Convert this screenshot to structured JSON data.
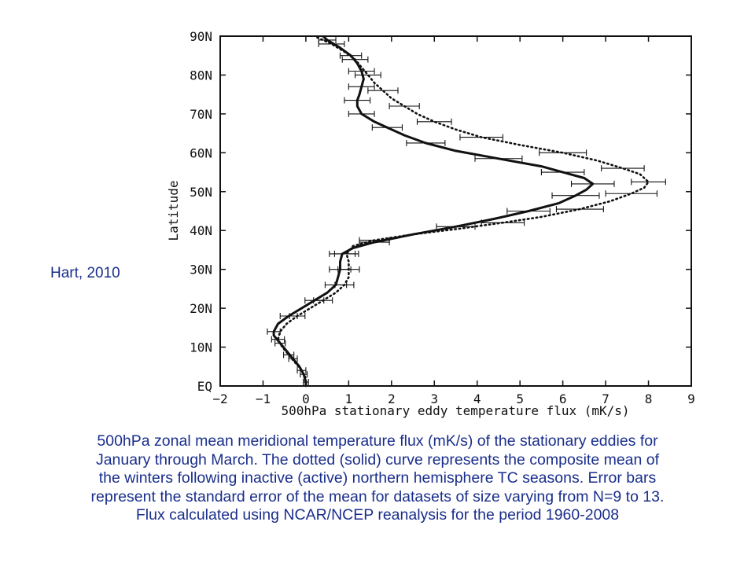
{
  "citation": "Hart, 2010",
  "caption": {
    "lines": [
      "500hPa zonal mean meridional temperature flux (mK/s) of the stationary eddies for",
      "January through March. The dotted (solid) curve represents the composite mean of",
      "the winters following inactive (active) northern hemisphere TC seasons. Error bars",
      "represent the standard error of the mean for datasets of size varying from N=9 to 13.",
      "Flux calculated using NCAR/NCEP reanalysis for the period 1960-2008"
    ]
  },
  "chart_data": {
    "type": "line",
    "title": "",
    "xlabel": "500hPa stationary eddy temperature flux (mK/s)",
    "ylabel": "Latitude",
    "xlim": [
      -2,
      9
    ],
    "ylim": [
      0,
      90
    ],
    "xticks": [
      -2,
      -1,
      0,
      1,
      2,
      3,
      4,
      5,
      6,
      7,
      8,
      9
    ],
    "xtick_labels": [
      "−2",
      "−1",
      "0",
      "1",
      "2",
      "3",
      "4",
      "5",
      "6",
      "7",
      "8",
      "9"
    ],
    "yticks": [
      0,
      10,
      20,
      30,
      40,
      50,
      60,
      70,
      80,
      90
    ],
    "ytick_labels": [
      "EQ",
      "10N",
      "20N",
      "30N",
      "40N",
      "50N",
      "60N",
      "70N",
      "80N",
      "90N"
    ],
    "grid": false,
    "series": [
      {
        "style": "solid",
        "color": "#111111",
        "points": [
          [
            0.0,
            0
          ],
          [
            0.0,
            1
          ],
          [
            -0.05,
            3
          ],
          [
            -0.15,
            5
          ],
          [
            -0.3,
            7
          ],
          [
            -0.45,
            9
          ],
          [
            -0.6,
            11
          ],
          [
            -0.75,
            13
          ],
          [
            -0.75,
            14
          ],
          [
            -0.65,
            16
          ],
          [
            -0.4,
            18
          ],
          [
            -0.1,
            20
          ],
          [
            0.2,
            22
          ],
          [
            0.5,
            24
          ],
          [
            0.7,
            26
          ],
          [
            0.75,
            28
          ],
          [
            0.8,
            30
          ],
          [
            0.8,
            32
          ],
          [
            0.85,
            34
          ],
          [
            1.1,
            35.5
          ],
          [
            1.6,
            37
          ],
          [
            2.5,
            39
          ],
          [
            3.5,
            41
          ],
          [
            4.4,
            43
          ],
          [
            5.2,
            45
          ],
          [
            5.9,
            47
          ],
          [
            6.3,
            49
          ],
          [
            6.55,
            50.5
          ],
          [
            6.7,
            52
          ],
          [
            6.5,
            53.5
          ],
          [
            6.0,
            55
          ],
          [
            5.5,
            56.5
          ],
          [
            4.5,
            58.5
          ],
          [
            3.5,
            60.5
          ],
          [
            2.8,
            62.5
          ],
          [
            2.3,
            64.5
          ],
          [
            1.9,
            66.5
          ],
          [
            1.6,
            68
          ],
          [
            1.3,
            70
          ],
          [
            1.2,
            72
          ],
          [
            1.2,
            73.5
          ],
          [
            1.25,
            75
          ],
          [
            1.3,
            77
          ],
          [
            1.35,
            79
          ],
          [
            1.3,
            81
          ],
          [
            1.2,
            83
          ],
          [
            1.05,
            85
          ],
          [
            0.8,
            87
          ],
          [
            0.5,
            89
          ],
          [
            0.4,
            90
          ]
        ],
        "errors": [
          [
            0.0,
            1,
            0.06
          ],
          [
            -0.05,
            3,
            0.08
          ],
          [
            -0.3,
            7,
            0.1
          ],
          [
            -0.6,
            11,
            0.12
          ],
          [
            -0.75,
            14,
            0.15
          ],
          [
            -0.4,
            18,
            0.2
          ],
          [
            0.2,
            22,
            0.22
          ],
          [
            0.7,
            26,
            0.25
          ],
          [
            0.8,
            30,
            0.25
          ],
          [
            0.85,
            34,
            0.3
          ],
          [
            1.6,
            37,
            0.35
          ],
          [
            3.5,
            41,
            0.45
          ],
          [
            5.2,
            45,
            0.5
          ],
          [
            6.3,
            49,
            0.55
          ],
          [
            6.7,
            52,
            0.5
          ],
          [
            6.0,
            55,
            0.5
          ],
          [
            4.5,
            58.5,
            0.55
          ],
          [
            2.8,
            62.5,
            0.45
          ],
          [
            1.9,
            66.5,
            0.35
          ],
          [
            1.3,
            70,
            0.3
          ],
          [
            1.2,
            73.5,
            0.3
          ],
          [
            1.3,
            77,
            0.3
          ],
          [
            1.3,
            81,
            0.3
          ],
          [
            1.05,
            85,
            0.25
          ],
          [
            0.5,
            89,
            0.2
          ]
        ]
      },
      {
        "style": "dotted",
        "color": "#111111",
        "points": [
          [
            0.0,
            0
          ],
          [
            0.0,
            2
          ],
          [
            -0.1,
            4
          ],
          [
            -0.25,
            6
          ],
          [
            -0.4,
            8
          ],
          [
            -0.55,
            10
          ],
          [
            -0.65,
            12
          ],
          [
            -0.6,
            14
          ],
          [
            -0.45,
            16
          ],
          [
            -0.2,
            18
          ],
          [
            0.1,
            20
          ],
          [
            0.4,
            22
          ],
          [
            0.7,
            24
          ],
          [
            0.9,
            26
          ],
          [
            1.0,
            28
          ],
          [
            1.0,
            30
          ],
          [
            1.0,
            32
          ],
          [
            0.95,
            34
          ],
          [
            1.1,
            36
          ],
          [
            1.6,
            37.5
          ],
          [
            2.5,
            39
          ],
          [
            3.6,
            40.5
          ],
          [
            4.6,
            42
          ],
          [
            5.5,
            43.5
          ],
          [
            6.4,
            45.5
          ],
          [
            7.1,
            47.5
          ],
          [
            7.6,
            49.5
          ],
          [
            7.9,
            51
          ],
          [
            8.0,
            52.5
          ],
          [
            7.8,
            54.5
          ],
          [
            7.4,
            56
          ],
          [
            6.8,
            58
          ],
          [
            6.0,
            60
          ],
          [
            5.0,
            62
          ],
          [
            4.1,
            64
          ],
          [
            3.5,
            66
          ],
          [
            3.0,
            68
          ],
          [
            2.6,
            70
          ],
          [
            2.3,
            72
          ],
          [
            2.0,
            74
          ],
          [
            1.8,
            76
          ],
          [
            1.6,
            78
          ],
          [
            1.45,
            80
          ],
          [
            1.3,
            82
          ],
          [
            1.15,
            84
          ],
          [
            0.9,
            86
          ],
          [
            0.6,
            88
          ],
          [
            0.3,
            89.5
          ],
          [
            0.2,
            90
          ]
        ],
        "errors": [
          [
            -0.1,
            4,
            0.1
          ],
          [
            -0.4,
            8,
            0.12
          ],
          [
            -0.65,
            12,
            0.15
          ],
          [
            -0.2,
            18,
            0.18
          ],
          [
            0.4,
            22,
            0.22
          ],
          [
            0.9,
            26,
            0.22
          ],
          [
            1.0,
            30,
            0.25
          ],
          [
            0.95,
            34,
            0.28
          ],
          [
            1.6,
            37.5,
            0.35
          ],
          [
            4.6,
            42,
            0.5
          ],
          [
            6.4,
            45.5,
            0.55
          ],
          [
            7.6,
            49.5,
            0.6
          ],
          [
            8.0,
            52.5,
            0.4
          ],
          [
            7.4,
            56,
            0.5
          ],
          [
            6.0,
            60,
            0.55
          ],
          [
            4.1,
            64,
            0.5
          ],
          [
            3.0,
            68,
            0.4
          ],
          [
            2.3,
            72,
            0.35
          ],
          [
            1.8,
            76,
            0.35
          ],
          [
            1.45,
            80,
            0.3
          ],
          [
            1.15,
            84,
            0.3
          ],
          [
            0.6,
            88,
            0.3
          ]
        ]
      }
    ]
  }
}
